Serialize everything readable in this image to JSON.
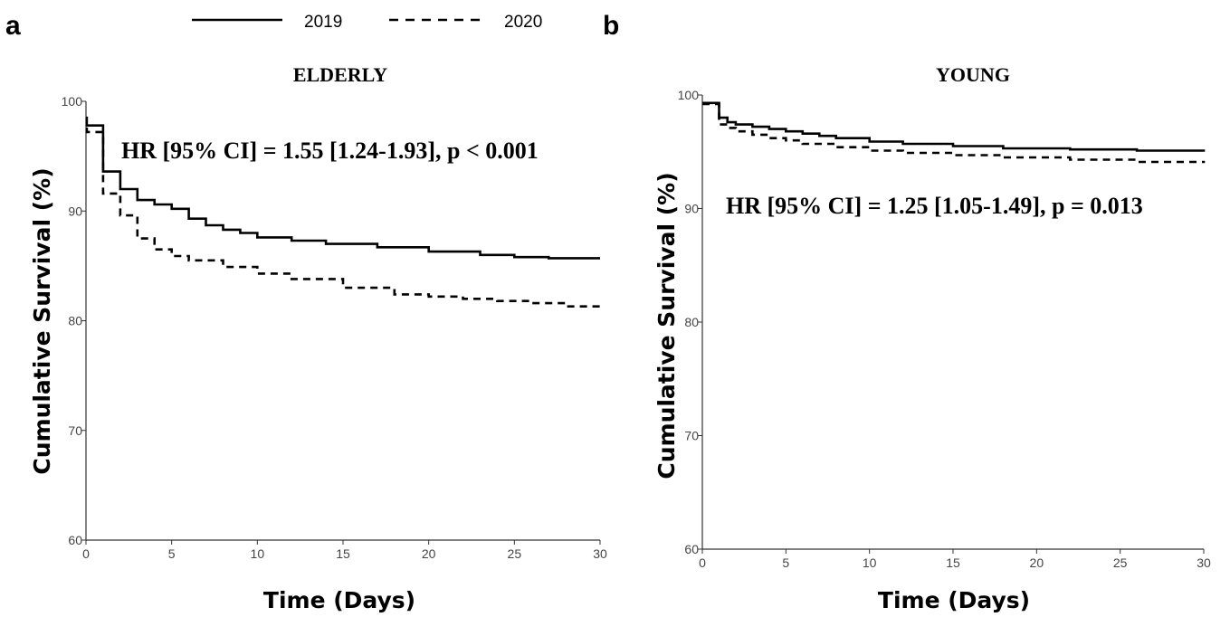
{
  "legend": {
    "items": [
      {
        "label": "2019",
        "dash": "solid"
      },
      {
        "label": "2020",
        "dash": "dashed"
      }
    ]
  },
  "chart_data": [
    {
      "panel_letter": "a",
      "type": "line",
      "title": "ELDERLY",
      "xlabel": "Time (Days)",
      "ylabel": "Cumulative Survival (%)",
      "xlim": [
        0,
        30
      ],
      "ylim": [
        60,
        100
      ],
      "xticks": [
        "0",
        "5",
        "10",
        "15",
        "20",
        "25",
        "30"
      ],
      "yticks": [
        "60",
        "70",
        "80",
        "90",
        "100"
      ],
      "annotation": "HR [95% CI] = 1.55 [1.24-1.93], p < 0.001",
      "step": true,
      "series": [
        {
          "name": "2019",
          "dash": "solid",
          "x": [
            0,
            0.05,
            1,
            2,
            3,
            4,
            5,
            6,
            7,
            8,
            9,
            10,
            12,
            14,
            17,
            20,
            23,
            25,
            27,
            30
          ],
          "y": [
            98.5,
            97.8,
            93.6,
            92.0,
            91.0,
            90.6,
            90.2,
            89.3,
            88.7,
            88.3,
            88.0,
            87.6,
            87.3,
            87.0,
            86.7,
            86.3,
            86.0,
            85.8,
            85.7,
            85.7
          ]
        },
        {
          "name": "2020",
          "dash": "dashed",
          "x": [
            0,
            0.05,
            1,
            2,
            3,
            4,
            5,
            6,
            8,
            10,
            12,
            15,
            18,
            20,
            22,
            24,
            26,
            28,
            30
          ],
          "y": [
            97.5,
            97.2,
            91.6,
            89.6,
            87.5,
            86.5,
            85.9,
            85.5,
            84.9,
            84.3,
            83.8,
            83.0,
            82.4,
            82.2,
            82.0,
            81.8,
            81.6,
            81.3,
            81.2
          ]
        }
      ]
    },
    {
      "panel_letter": "b",
      "type": "line",
      "title": "YOUNG",
      "xlabel": "Time (Days)",
      "ylabel": "Cumulative Survival (%)",
      "xlim": [
        0,
        30
      ],
      "ylim": [
        60,
        100
      ],
      "xticks": [
        "0",
        "5",
        "10",
        "15",
        "20",
        "25",
        "30"
      ],
      "yticks": [
        "60",
        "70",
        "80",
        "90",
        "100"
      ],
      "annotation": "HR [95% CI] = 1.25 [1.05-1.49], p = 0.013",
      "step": true,
      "series": [
        {
          "name": "2019",
          "dash": "solid",
          "x": [
            0,
            1,
            1.5,
            2,
            3,
            4,
            5,
            6,
            7,
            8,
            10,
            12,
            15,
            18,
            22,
            26,
            30
          ],
          "y": [
            99.3,
            98.0,
            97.6,
            97.4,
            97.2,
            97.0,
            96.8,
            96.6,
            96.4,
            96.2,
            95.9,
            95.7,
            95.5,
            95.3,
            95.2,
            95.1,
            95.0
          ]
        },
        {
          "name": "2020",
          "dash": "dashed",
          "x": [
            0,
            1,
            1.5,
            2,
            3,
            4,
            5,
            6,
            8,
            10,
            12,
            15,
            18,
            22,
            26,
            30
          ],
          "y": [
            99.2,
            97.4,
            97.1,
            96.8,
            96.5,
            96.2,
            96.0,
            95.7,
            95.4,
            95.1,
            94.9,
            94.7,
            94.5,
            94.3,
            94.1,
            94.0
          ]
        }
      ]
    }
  ]
}
